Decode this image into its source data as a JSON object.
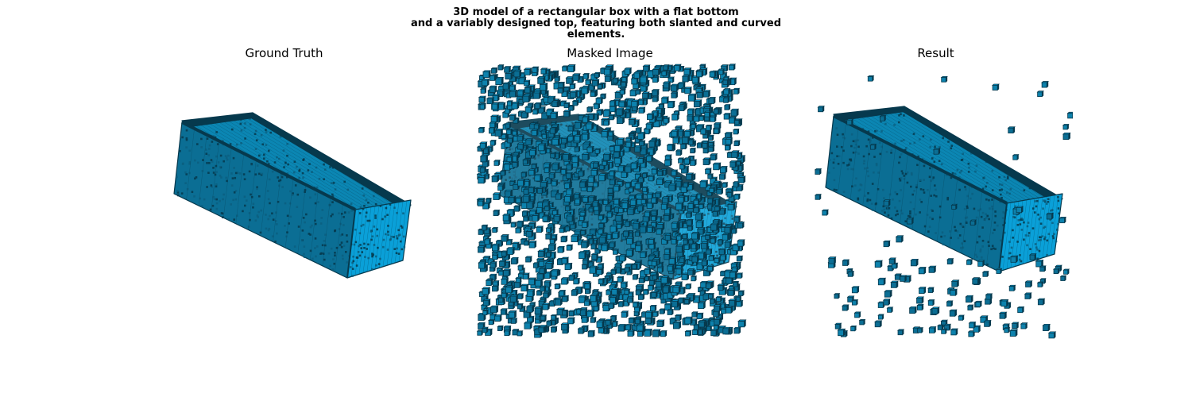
{
  "figure": {
    "title_lines": [
      "3D model of a rectangular box with a flat bottom",
      "and a variably designed top, featuring both slanted and curved",
      "elements."
    ]
  },
  "panels": [
    {
      "id": "ground-truth",
      "title": "Ground Truth",
      "content": "voxel box, intact"
    },
    {
      "id": "masked-image",
      "title": "Masked Image",
      "content": "voxel box with scattered voxels"
    },
    {
      "id": "result",
      "title": "Result",
      "content": "reconstructed voxel box with a few stray voxels"
    }
  ],
  "colors": {
    "voxel_face": "#0aa0d8",
    "voxel_side": "#0b6e94",
    "voxel_edge": "#06394d",
    "background": "#ffffff"
  }
}
